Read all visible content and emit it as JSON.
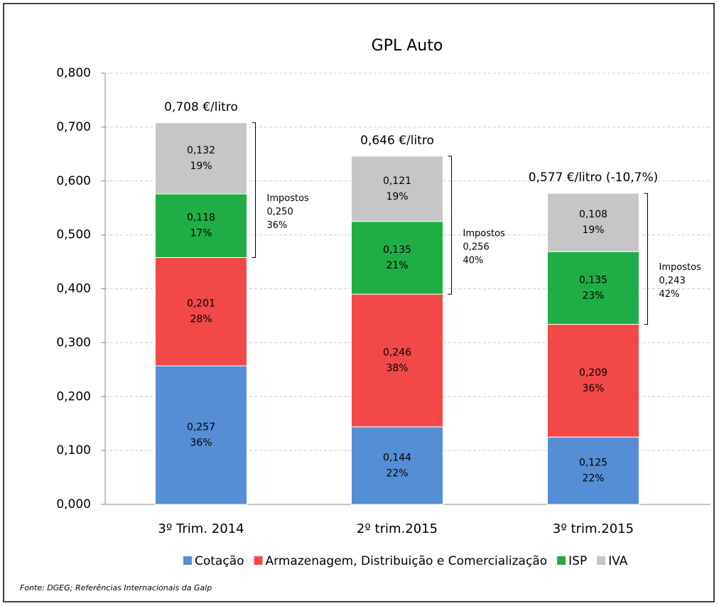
{
  "chart_data": {
    "type": "stacked_bar",
    "title": "GPL Auto",
    "categories": [
      "3º Trim. 2014",
      "2º trim.2015",
      "3º trim.2015"
    ],
    "series": [
      {
        "name": "Cotação",
        "color": "#558ed5",
        "values": [
          0.257,
          0.144,
          0.125
        ],
        "value_labels": [
          "0,257",
          "0,144",
          "0,125"
        ],
        "share_labels": [
          "36%",
          "22%",
          "22%"
        ]
      },
      {
        "name": "Armazenagem, Distribuição e Comercialização",
        "color": "#f24848",
        "values": [
          0.201,
          0.246,
          0.209
        ],
        "value_labels": [
          "0,201",
          "0,246",
          "0,209"
        ],
        "share_labels": [
          "28%",
          "38%",
          "36%"
        ]
      },
      {
        "name": "ISP",
        "color": "#1fae45",
        "values": [
          0.118,
          0.135,
          0.135
        ],
        "value_labels": [
          "0,118",
          "0,135",
          "0,135"
        ],
        "share_labels": [
          "17%",
          "21%",
          "23%"
        ]
      },
      {
        "name": "IVA",
        "color": "#c6c6c6",
        "values": [
          0.132,
          0.121,
          0.108
        ],
        "value_labels": [
          "0,132",
          "0,121",
          "0,108"
        ],
        "share_labels": [
          "19%",
          "19%",
          "19%"
        ]
      }
    ],
    "total_labels": [
      "0,708  €/litro",
      "0,646 €/litro",
      "0,577 €/litro (-10,7%)"
    ],
    "tax_annotations": [
      {
        "label": "Impostos",
        "value_label": "0,250",
        "share_label": "36%"
      },
      {
        "label": "Impostos",
        "value_label": "0,256",
        "share_label": "40%"
      },
      {
        "label": "Impostos",
        "value_label": "0,243",
        "share_label": "42%"
      }
    ],
    "ylim": [
      0,
      0.8
    ],
    "yticks": [
      {
        "value": 0,
        "label": "0,000"
      },
      {
        "value": 0.1,
        "label": "0,100"
      },
      {
        "value": 0.2,
        "label": "0,200"
      },
      {
        "value": 0.3,
        "label": "0,300"
      },
      {
        "value": 0.4,
        "label": "0,400"
      },
      {
        "value": 0.5,
        "label": "0,500"
      },
      {
        "value": 0.6,
        "label": "0,600"
      },
      {
        "value": 0.7,
        "label": "0,700"
      },
      {
        "value": 0.8,
        "label": "0,800"
      }
    ],
    "grid": true,
    "legend": "bottom",
    "source": "Fonte: DGEG; Referências Internacionais da Galp"
  }
}
